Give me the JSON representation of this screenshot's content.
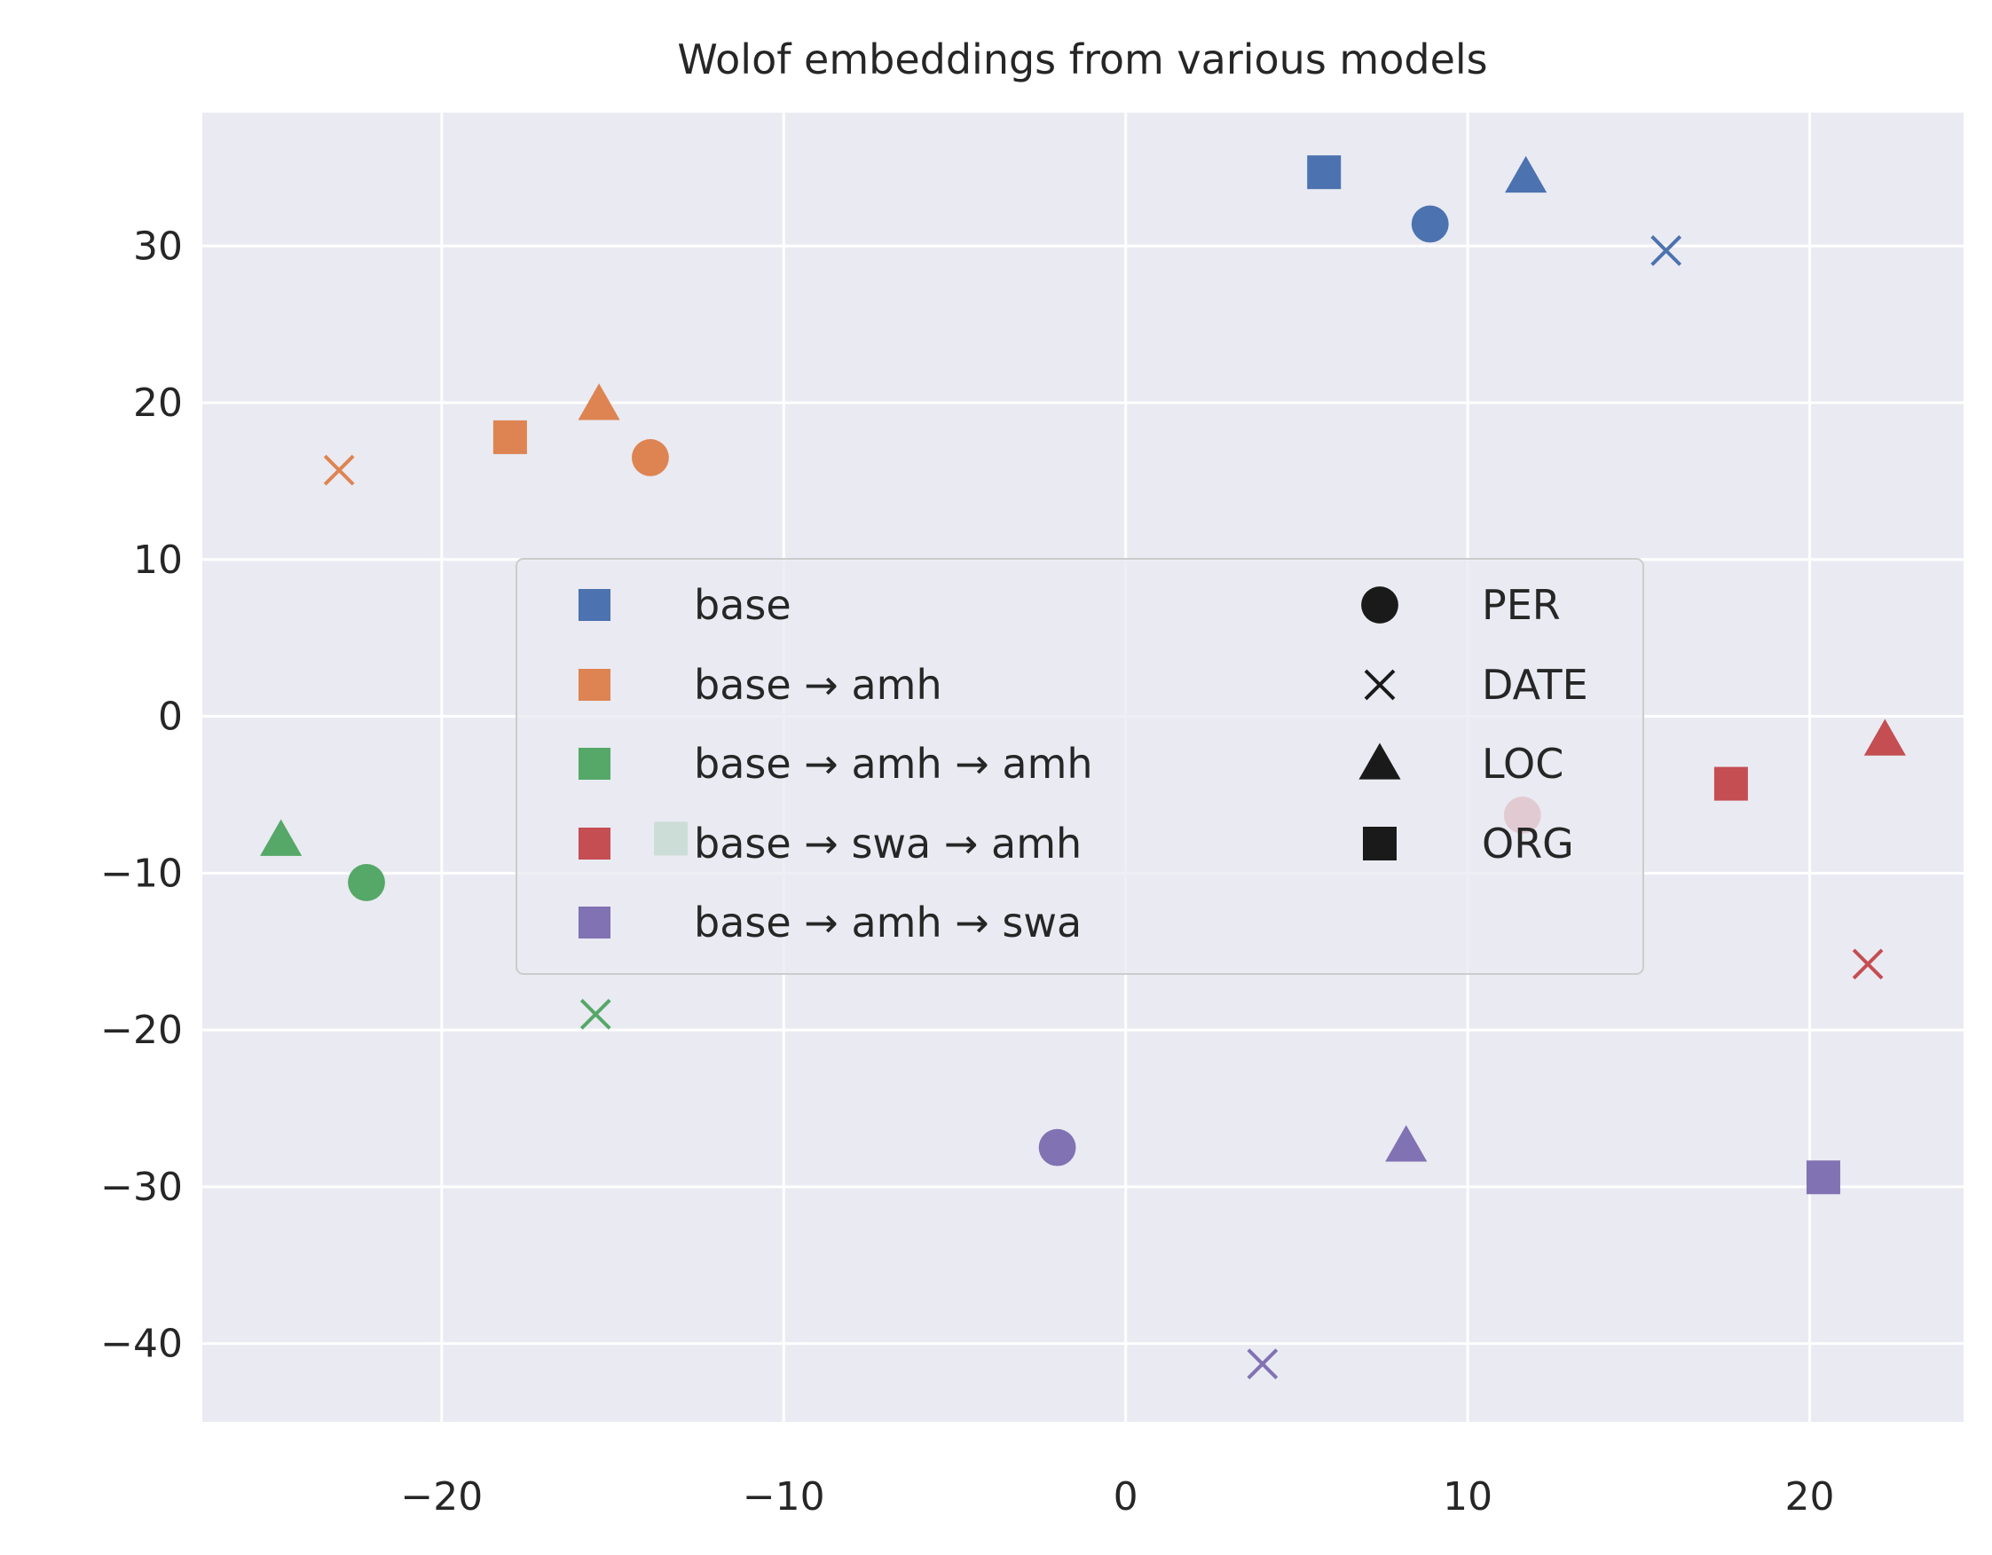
{
  "chart_data": {
    "type": "scatter",
    "title": "Wolof embeddings from various models",
    "xlabel": "",
    "ylabel": "",
    "xlim": [
      -27,
      24.5
    ],
    "ylim": [
      -45,
      38.5
    ],
    "xticks": [
      -20,
      -10,
      0,
      10,
      20
    ],
    "yticks": [
      -40,
      -30,
      -20,
      -10,
      0,
      10,
      20,
      30
    ],
    "grid": true,
    "legend_placement": "center",
    "colors": {
      "base": "#4c72b0",
      "base_amh": "#dd8452",
      "base_amh_amh": "#55a868",
      "base_swa_amh": "#c44e52",
      "base_amh_swa": "#8172b3",
      "marker_legend": "#1a1a1a",
      "background": "#eaeaf2"
    },
    "model_legend": [
      {
        "key": "base",
        "label": "base"
      },
      {
        "key": "base_amh",
        "label": "base → amh"
      },
      {
        "key": "base_amh_amh",
        "label": "base → amh → amh"
      },
      {
        "key": "base_swa_amh",
        "label": "base → swa → amh"
      },
      {
        "key": "base_amh_swa",
        "label": "base → amh → swa"
      }
    ],
    "entity_legend": [
      {
        "marker": "circle",
        "label": "PER"
      },
      {
        "marker": "x",
        "label": "DATE"
      },
      {
        "marker": "triangle",
        "label": "LOC"
      },
      {
        "marker": "square",
        "label": "ORG"
      }
    ],
    "series": [
      {
        "model": "base",
        "points": [
          {
            "entity": "ORG",
            "x": 5.8,
            "y": 34.7
          },
          {
            "entity": "PER",
            "x": 8.9,
            "y": 31.4
          },
          {
            "entity": "LOC",
            "x": 11.7,
            "y": 34.4
          },
          {
            "entity": "DATE",
            "x": 15.8,
            "y": 29.7
          }
        ]
      },
      {
        "model": "base_amh",
        "points": [
          {
            "entity": "DATE",
            "x": -23.0,
            "y": 15.7
          },
          {
            "entity": "ORG",
            "x": -18.0,
            "y": 17.8
          },
          {
            "entity": "LOC",
            "x": -15.4,
            "y": 19.9
          },
          {
            "entity": "PER",
            "x": -13.9,
            "y": 16.5
          }
        ]
      },
      {
        "model": "base_amh_amh",
        "points": [
          {
            "entity": "LOC",
            "x": -24.7,
            "y": -7.9
          },
          {
            "entity": "PER",
            "x": -22.2,
            "y": -10.6
          },
          {
            "entity": "ORG",
            "x": -13.3,
            "y": -7.8
          },
          {
            "entity": "DATE",
            "x": -15.5,
            "y": -19.0
          }
        ]
      },
      {
        "model": "base_swa_amh",
        "points": [
          {
            "entity": "PER",
            "x": 11.6,
            "y": -6.3
          },
          {
            "entity": "ORG",
            "x": 17.7,
            "y": -4.3
          },
          {
            "entity": "LOC",
            "x": 22.2,
            "y": -1.5
          },
          {
            "entity": "DATE",
            "x": 21.7,
            "y": -15.8
          }
        ]
      },
      {
        "model": "base_amh_swa",
        "points": [
          {
            "entity": "PER",
            "x": -2.0,
            "y": -27.5
          },
          {
            "entity": "LOC",
            "x": 8.2,
            "y": -27.4
          },
          {
            "entity": "ORG",
            "x": 20.4,
            "y": -29.4
          },
          {
            "entity": "DATE",
            "x": 4.0,
            "y": -41.3
          }
        ]
      }
    ]
  }
}
